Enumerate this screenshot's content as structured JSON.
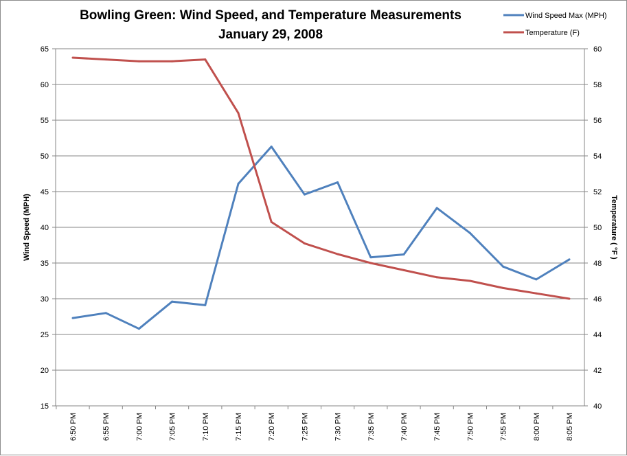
{
  "chart_data": {
    "type": "line",
    "title": "Bowling Green: Wind Speed, and Temperature Measurements",
    "subtitle": "January 29, 2008",
    "categories": [
      "6:50 PM",
      "6:55 PM",
      "7:00 PM",
      "7:05 PM",
      "7:10 PM",
      "7:15 PM",
      "7:20 PM",
      "7:25 PM",
      "7:30 PM",
      "7:35 PM",
      "7:40 PM",
      "7:45 PM",
      "7:50 PM",
      "7:55 PM",
      "8:00 PM",
      "8:05 PM"
    ],
    "ylabel_left": "Wind Speed (MPH)",
    "ylabel_right": "Temperature ( °F )",
    "ylim_left": [
      15,
      65
    ],
    "ylim_right": [
      40,
      60
    ],
    "yticks_left": [
      15,
      20,
      25,
      30,
      35,
      40,
      45,
      50,
      55,
      60,
      65
    ],
    "yticks_right": [
      40,
      42,
      44,
      46,
      48,
      50,
      52,
      54,
      56,
      58,
      60
    ],
    "grid": true,
    "legend_position": "top-right",
    "series": [
      {
        "name": "Wind Speed Max  (MPH)",
        "axis": "left",
        "color": "#4f81bd",
        "values": [
          27.3,
          28.0,
          25.8,
          29.6,
          29.1,
          46.1,
          51.3,
          44.6,
          46.3,
          35.8,
          36.2,
          42.7,
          39.2,
          34.5,
          32.7,
          35.5
        ]
      },
      {
        "name": "Temperature (F)",
        "axis": "right",
        "color": "#c0504d",
        "values": [
          59.5,
          59.4,
          59.3,
          59.3,
          59.4,
          56.4,
          50.3,
          49.1,
          48.5,
          48.0,
          47.6,
          47.2,
          47.0,
          46.6,
          46.3,
          46.0
        ]
      }
    ]
  }
}
